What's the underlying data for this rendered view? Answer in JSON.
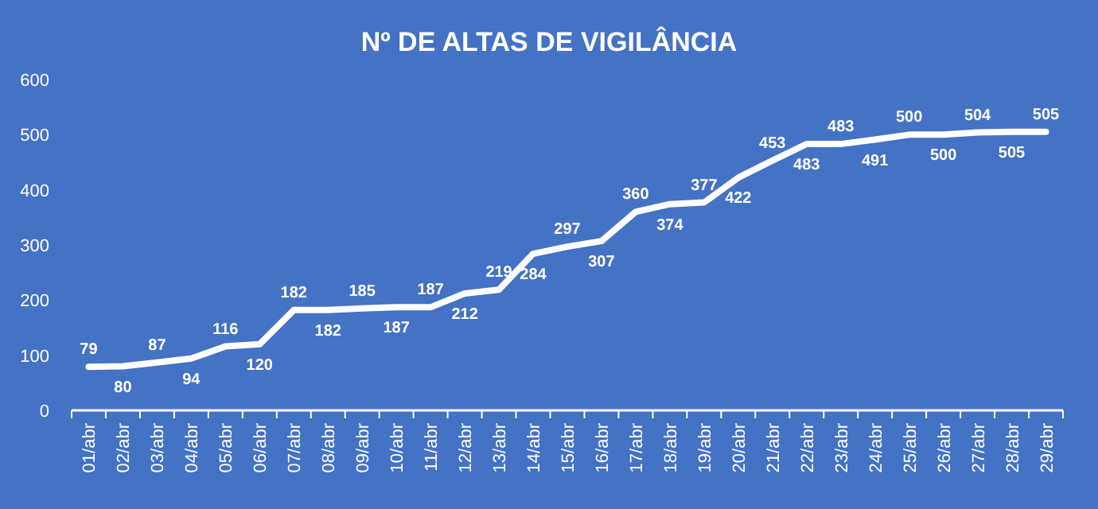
{
  "chart_data": {
    "type": "line",
    "title": "Nº DE ALTAS DE VIGILÂNCIA",
    "categories": [
      "01/abr",
      "02/abr",
      "03/abr",
      "04/abr",
      "05/abr",
      "06/abr",
      "07/abr",
      "08/abr",
      "09/abr",
      "10/abr",
      "11/abr",
      "12/abr",
      "13/abr",
      "14/abr",
      "15/abr",
      "16/abr",
      "17/abr",
      "18/abr",
      "19/abr",
      "20/abr",
      "21/abr",
      "22/abr",
      "23/abr",
      "24/abr",
      "25/abr",
      "26/abr",
      "27/abr",
      "28/abr",
      "29/abr"
    ],
    "series": [
      {
        "color": "#ffffff",
        "values": [
          79,
          80,
          87,
          94,
          116,
          120,
          182,
          182,
          185,
          187,
          187,
          212,
          219,
          284,
          297,
          307,
          360,
          374,
          377,
          422,
          453,
          483,
          483,
          491,
          500,
          500,
          504,
          505,
          505
        ]
      }
    ],
    "ylim": [
      0,
      600
    ],
    "yticks": [
      0,
      100,
      200,
      300,
      400,
      500,
      600
    ],
    "grid": false,
    "data_labels": true,
    "marker": "none",
    "line_style": "solid"
  }
}
